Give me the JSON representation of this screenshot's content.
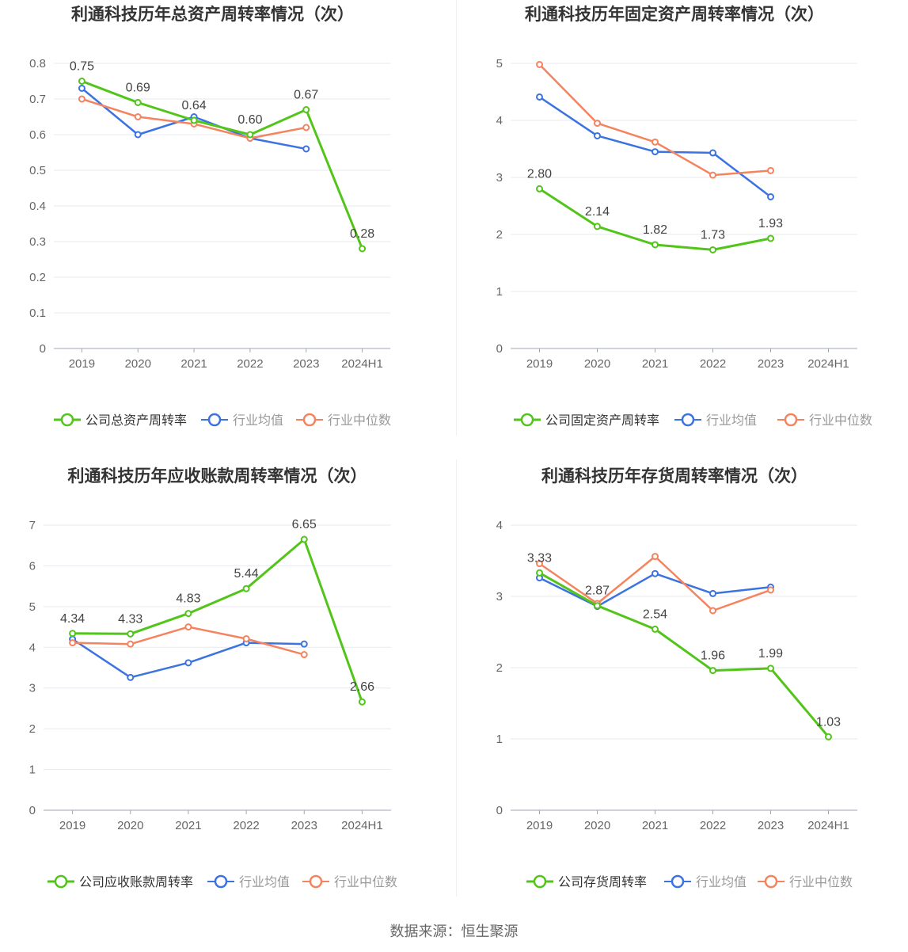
{
  "source": "数据来源：恒生聚源",
  "colors": {
    "company": "#52c41a",
    "industry_avg": "#3b73e0",
    "industry_median": "#f4845f"
  },
  "chart_data": [
    {
      "type": "line",
      "title": "利通科技历年总资产周转率情况（次）",
      "categories": [
        "2019",
        "2020",
        "2021",
        "2022",
        "2023",
        "2024H1"
      ],
      "ylim": [
        0,
        0.8
      ],
      "yticks": [
        "0",
        "0.1",
        "0.2",
        "0.3",
        "0.4",
        "0.5",
        "0.6",
        "0.7",
        "0.8"
      ],
      "legend_position": "bottom",
      "series": [
        {
          "name": "公司总资产周转率",
          "values": [
            0.75,
            0.69,
            0.64,
            0.6,
            0.67,
            0.28
          ],
          "labels": [
            "0.75",
            "0.69",
            "0.64",
            "0.60",
            "0.67",
            "0.28"
          ]
        },
        {
          "name": "行业均值",
          "values": [
            0.73,
            0.6,
            0.65,
            0.59,
            0.56,
            null
          ]
        },
        {
          "name": "行业中位数",
          "values": [
            0.7,
            0.65,
            0.63,
            0.59,
            0.62,
            null
          ]
        }
      ]
    },
    {
      "type": "line",
      "title": "利通科技历年固定资产周转率情况（次）",
      "categories": [
        "2019",
        "2020",
        "2021",
        "2022",
        "2023",
        "2024H1"
      ],
      "ylim": [
        0,
        5
      ],
      "yticks": [
        "0",
        "1",
        "2",
        "3",
        "4",
        "5"
      ],
      "legend_position": "bottom",
      "series": [
        {
          "name": "公司固定资产周转率",
          "values": [
            2.8,
            2.14,
            1.82,
            1.73,
            1.93,
            null
          ],
          "labels": [
            "2.80",
            "2.14",
            "1.82",
            "1.73",
            "1.93",
            ""
          ]
        },
        {
          "name": "行业均值",
          "values": [
            4.41,
            3.73,
            3.45,
            3.43,
            2.66,
            null
          ]
        },
        {
          "name": "行业中位数",
          "values": [
            4.98,
            3.95,
            3.62,
            3.04,
            3.12,
            null
          ]
        }
      ]
    },
    {
      "type": "line",
      "title": "利通科技历年应收账款周转率情况（次）",
      "categories": [
        "2019",
        "2020",
        "2021",
        "2022",
        "2023",
        "2024H1"
      ],
      "ylim": [
        0,
        7
      ],
      "yticks": [
        "0",
        "1",
        "2",
        "3",
        "4",
        "5",
        "6",
        "7"
      ],
      "legend_position": "bottom",
      "series": [
        {
          "name": "公司应收账款周转率",
          "values": [
            4.34,
            4.33,
            4.83,
            5.44,
            6.65,
            2.66
          ],
          "labels": [
            "4.34",
            "4.33",
            "4.83",
            "5.44",
            "6.65",
            "2.66"
          ]
        },
        {
          "name": "行业均值",
          "values": [
            4.2,
            3.26,
            3.62,
            4.11,
            4.08,
            null
          ]
        },
        {
          "name": "行业中位数",
          "values": [
            4.11,
            4.08,
            4.5,
            4.21,
            3.82,
            null
          ]
        }
      ]
    },
    {
      "type": "line",
      "title": "利通科技历年存货周转率情况（次）",
      "categories": [
        "2019",
        "2020",
        "2021",
        "2022",
        "2023",
        "2024H1"
      ],
      "ylim": [
        0,
        4
      ],
      "yticks": [
        "0",
        "1",
        "2",
        "3",
        "4"
      ],
      "legend_position": "bottom",
      "series": [
        {
          "name": "公司存货周转率",
          "values": [
            3.33,
            2.87,
            2.54,
            1.96,
            1.99,
            1.03
          ],
          "labels": [
            "3.33",
            "2.87",
            "2.54",
            "1.96",
            "1.99",
            "1.03"
          ]
        },
        {
          "name": "行业均值",
          "values": [
            3.26,
            2.86,
            3.32,
            3.04,
            3.13,
            null
          ]
        },
        {
          "name": "行业中位数",
          "values": [
            3.46,
            2.9,
            3.56,
            2.8,
            3.09,
            null
          ]
        }
      ]
    }
  ]
}
